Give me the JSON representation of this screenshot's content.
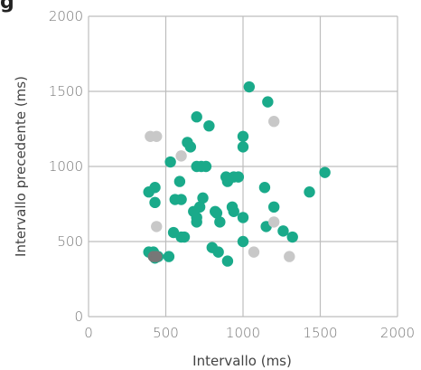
{
  "title_fragment": "g",
  "chart_data": {
    "type": "scatter",
    "title": "",
    "xlabel": "Intervallo (ms)",
    "ylabel": "Intervallo precedente (ms)",
    "xlim": [
      0,
      2000
    ],
    "ylim": [
      0,
      2000
    ],
    "x_ticks": [
      "0",
      "500",
      "1000",
      "1500",
      "2000"
    ],
    "y_ticks": [
      "0",
      "500",
      "1000",
      "1500",
      "2000"
    ],
    "grid": true,
    "series": [
      {
        "color": "#1aaa8a",
        "points": [
          [
            1040,
            1530
          ],
          [
            700,
            1330
          ],
          [
            1160,
            1430
          ],
          [
            780,
            1270
          ],
          [
            1000,
            1200
          ],
          [
            1000,
            1130
          ],
          [
            640,
            1160
          ],
          [
            660,
            1130
          ],
          [
            530,
            1030
          ],
          [
            700,
            1000
          ],
          [
            730,
            1000
          ],
          [
            760,
            1000
          ],
          [
            1530,
            960
          ],
          [
            890,
            930
          ],
          [
            940,
            930
          ],
          [
            970,
            930
          ],
          [
            590,
            900
          ],
          [
            900,
            900
          ],
          [
            430,
            860
          ],
          [
            1140,
            860
          ],
          [
            390,
            830
          ],
          [
            1430,
            830
          ],
          [
            560,
            780
          ],
          [
            600,
            780
          ],
          [
            740,
            790
          ],
          [
            430,
            760
          ],
          [
            720,
            730
          ],
          [
            930,
            730
          ],
          [
            680,
            700
          ],
          [
            820,
            700
          ],
          [
            940,
            700
          ],
          [
            1200,
            730
          ],
          [
            700,
            660
          ],
          [
            830,
            690
          ],
          [
            1000,
            660
          ],
          [
            700,
            630
          ],
          [
            850,
            630
          ],
          [
            1150,
            600
          ],
          [
            1260,
            570
          ],
          [
            550,
            560
          ],
          [
            620,
            530
          ],
          [
            600,
            530
          ],
          [
            1320,
            530
          ],
          [
            800,
            460
          ],
          [
            840,
            430
          ],
          [
            1000,
            500
          ],
          [
            390,
            430
          ],
          [
            420,
            430
          ],
          [
            450,
            400
          ],
          [
            520,
            400
          ],
          [
            430,
            390
          ],
          [
            900,
            370
          ]
        ]
      },
      {
        "color": "#c8c8c8",
        "points": [
          [
            400,
            1200
          ],
          [
            440,
            1200
          ],
          [
            1200,
            1300
          ],
          [
            600,
            1070
          ],
          [
            440,
            600
          ],
          [
            1200,
            630
          ],
          [
            1070,
            430
          ],
          [
            1300,
            400
          ]
        ]
      },
      {
        "color": "#777777",
        "points": [
          [
            420,
            400
          ],
          [
            440,
            400
          ]
        ]
      }
    ]
  }
}
